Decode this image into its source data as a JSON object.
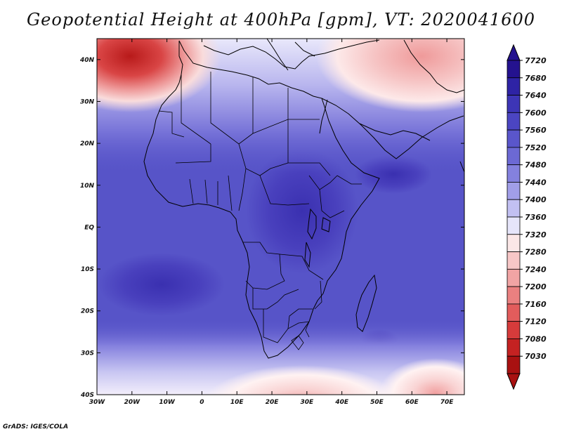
{
  "title": "Geopotential Height at 400hPa [gpm], VT: 2020041600",
  "credit": "GrADS: IGES/COLA",
  "lat_labels": [
    "40N",
    "30N",
    "20N",
    "10N",
    "EQ",
    "10S",
    "20S",
    "30S",
    "40S"
  ],
  "lon_labels": [
    "30W",
    "20W",
    "10W",
    "0",
    "10E",
    "20E",
    "30E",
    "40E",
    "50E",
    "60E",
    "70E"
  ],
  "colorbar": {
    "levels": [
      "7720",
      "7680",
      "7640",
      "7600",
      "7560",
      "7520",
      "7480",
      "7440",
      "7400",
      "7360",
      "7320",
      "7280",
      "7240",
      "7200",
      "7160",
      "7120",
      "7080",
      "7030"
    ],
    "colors": [
      "#24128f",
      "#2e23a5",
      "#3d35b6",
      "#4b45c2",
      "#5a56cb",
      "#6c69d4",
      "#8481de",
      "#a19ee8",
      "#c2c0f2",
      "#e6e5fa",
      "#fbe7e7",
      "#f7c7c7",
      "#f1a4a4",
      "#ea8080",
      "#e25c5c",
      "#d63b3b",
      "#c42222",
      "#a81111"
    ]
  }
}
